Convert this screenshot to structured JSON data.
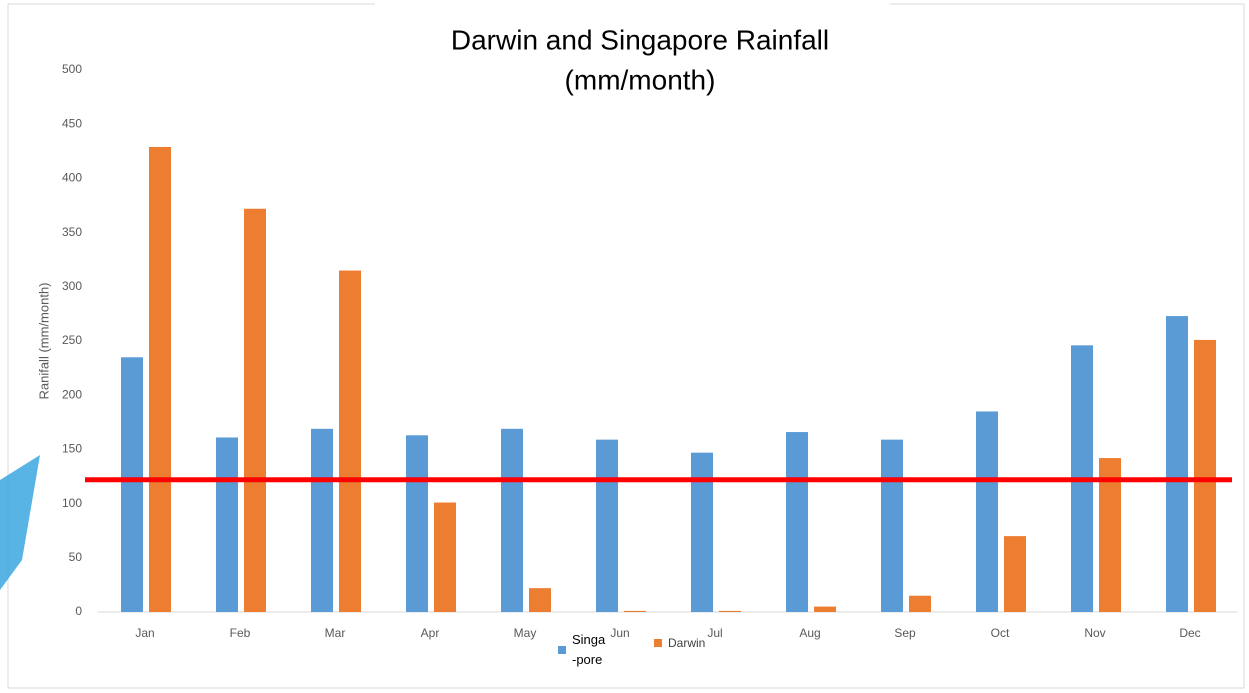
{
  "chart_data": {
    "type": "bar",
    "title": "Darwin and Singapore Rainfall",
    "subtitle": "(mm/month)",
    "y_label": "Ranifall (mm/month)",
    "categories": [
      "Jan",
      "Feb",
      "Mar",
      "Apr",
      "May",
      "Jun",
      "Jul",
      "Aug",
      "Sep",
      "Oct",
      "Nov",
      "Dec"
    ],
    "series": [
      {
        "name": "Singa\n-pore",
        "color": "#5b9bd5",
        "values": [
          235,
          161,
          169,
          163,
          169,
          159,
          147,
          166,
          159,
          185,
          246,
          273
        ]
      },
      {
        "name": "Darwin",
        "color": "#ed7d31",
        "values": [
          429,
          372,
          315,
          101,
          22,
          1,
          1,
          5,
          15,
          70,
          142,
          251
        ]
      }
    ],
    "ylim": [
      0,
      500
    ],
    "yticks": [
      0,
      50,
      100,
      150,
      200,
      250,
      300,
      350,
      400,
      450,
      500
    ],
    "grid": false,
    "reference_line": {
      "value": 122,
      "color": "#ff0000"
    }
  }
}
